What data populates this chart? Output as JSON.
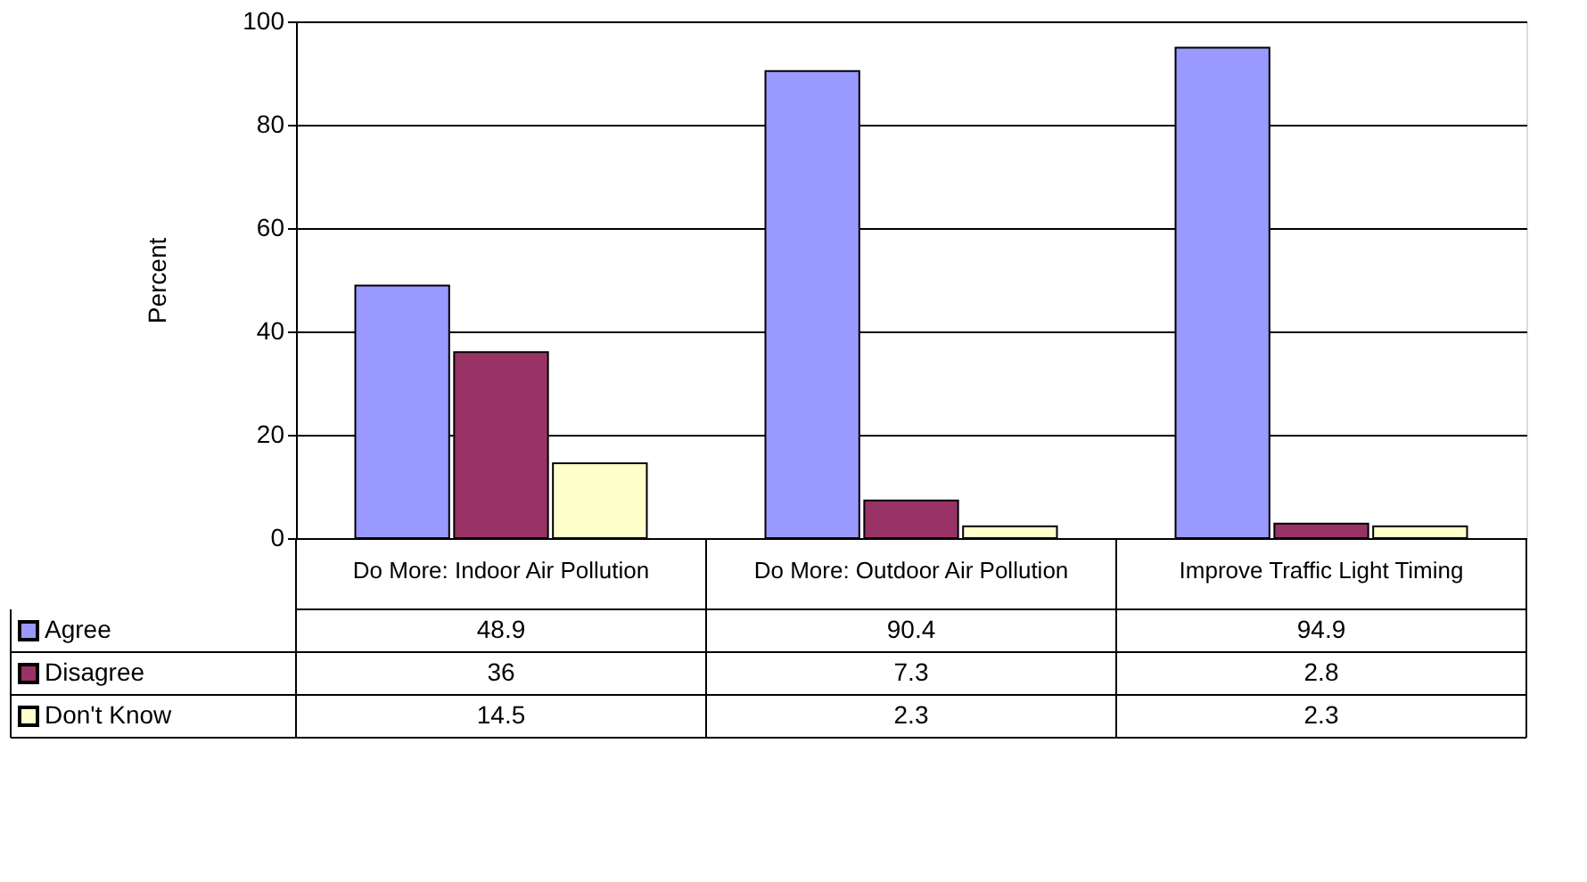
{
  "chart_data": {
    "type": "bar",
    "ylabel": "Percent",
    "categories": [
      "Do More: Indoor Air Pollution",
      "Do More: Outdoor Air Pollution",
      "Improve Traffic Light Timing"
    ],
    "series": [
      {
        "name": "Agree",
        "color": "#9999ff",
        "values": [
          48.9,
          90.4,
          94.9
        ]
      },
      {
        "name": "Disagree",
        "color": "#993366",
        "values": [
          36,
          7.3,
          2.8
        ]
      },
      {
        "name": "Don't Know",
        "color": "#ffffcc",
        "values": [
          14.5,
          2.3,
          2.3
        ]
      }
    ],
    "ylim": [
      0,
      100
    ],
    "yticks": [
      0,
      20,
      40,
      60,
      80,
      100
    ],
    "grid": "y",
    "legend": "bottom left",
    "data_labels": true
  }
}
